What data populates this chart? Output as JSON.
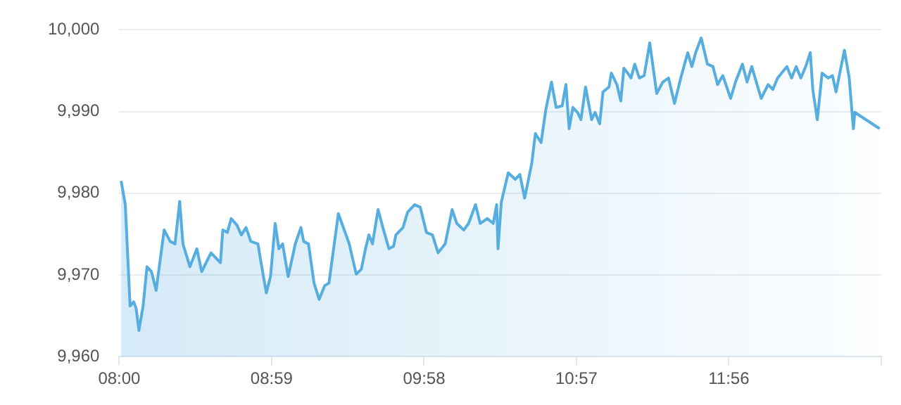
{
  "chart_data": {
    "type": "area",
    "color": "#56ade0",
    "x": [
      8.012,
      8.039,
      8.07,
      8.093,
      8.109,
      8.127,
      8.154,
      8.179,
      8.208,
      8.238,
      8.29,
      8.329,
      8.36,
      8.39,
      8.411,
      8.456,
      8.501,
      8.532,
      8.592,
      8.653,
      8.668,
      8.698,
      8.722,
      8.759,
      8.788,
      8.818,
      8.849,
      8.895,
      8.915,
      8.949,
      8.976,
      9.006,
      9.03,
      9.054,
      9.09,
      9.136,
      9.172,
      9.19,
      9.221,
      9.257,
      9.29,
      9.326,
      9.353,
      9.414,
      9.484,
      9.529,
      9.562,
      9.589,
      9.611,
      9.634,
      9.67,
      9.701,
      9.74,
      9.77,
      9.785,
      9.831,
      9.861,
      9.906,
      9.942,
      9.982,
      10.021,
      10.057,
      10.103,
      10.148,
      10.178,
      10.223,
      10.254,
      10.299,
      10.329,
      10.375,
      10.413,
      10.435,
      10.444,
      10.465,
      10.51,
      10.555,
      10.585,
      10.616,
      10.662,
      10.685,
      10.722,
      10.752,
      10.789,
      10.819,
      10.858,
      10.882,
      10.903,
      10.927,
      10.957,
      10.979,
      11.009,
      11.048,
      11.07,
      11.1,
      11.121,
      11.16,
      11.175,
      11.211,
      11.236,
      11.256,
      11.281,
      11.302,
      11.326,
      11.356,
      11.387,
      11.423,
      11.468,
      11.507,
      11.544,
      11.583,
      11.623,
      11.668,
      11.695,
      11.719,
      11.755,
      11.795,
      11.831,
      11.861,
      11.894,
      11.945,
      11.976,
      12.021,
      12.051,
      12.081,
      12.142,
      12.187,
      12.217,
      12.248,
      12.308,
      12.338,
      12.368,
      12.398,
      12.429,
      12.459,
      12.475,
      12.504,
      12.535,
      12.574,
      12.602,
      12.625,
      12.679,
      12.71,
      12.737,
      12.746,
      12.906
    ],
    "values": [
      9981.5,
      9978.6,
      9966.2,
      9966.7,
      9965.9,
      9963.2,
      9966.2,
      9971.0,
      9970.4,
      9968.1,
      9975.5,
      9974.1,
      9973.8,
      9979.0,
      9973.8,
      9971.0,
      9973.2,
      9970.4,
      9972.7,
      9971.5,
      9975.5,
      9975.2,
      9976.9,
      9976.1,
      9974.9,
      9975.8,
      9974.1,
      9973.8,
      9971.5,
      9967.8,
      9969.8,
      9976.3,
      9973.2,
      9973.8,
      9969.8,
      9973.8,
      9975.8,
      9974.1,
      9973.8,
      9969.0,
      9967.0,
      9968.7,
      9969.0,
      9977.5,
      9973.8,
      9970.1,
      9970.7,
      9973.2,
      9974.9,
      9973.8,
      9978.0,
      9975.8,
      9973.2,
      9973.5,
      9974.9,
      9975.8,
      9977.7,
      9978.6,
      9978.3,
      9975.2,
      9974.9,
      9972.7,
      9973.8,
      9978.0,
      9976.3,
      9975.5,
      9976.3,
      9978.6,
      9976.3,
      9976.9,
      9976.3,
      9978.6,
      9973.2,
      9978.9,
      9982.5,
      9981.7,
      9982.3,
      9979.4,
      9983.7,
      9987.3,
      9986.2,
      9990.2,
      9993.6,
      9990.5,
      9990.7,
      9993.3,
      9987.9,
      9990.5,
      9989.9,
      9989.0,
      9993.0,
      9989.0,
      9989.9,
      9988.5,
      9992.4,
      9993.0,
      9994.7,
      9993.3,
      9991.3,
      9995.3,
      9994.7,
      9994.1,
      9995.8,
      9994.1,
      9994.4,
      9998.4,
      9992.2,
      9993.6,
      9994.1,
      9991.0,
      9994.1,
      9997.2,
      9995.5,
      9997.2,
      9999.0,
      9995.8,
      9995.5,
      9993.3,
      9994.4,
      9991.6,
      9993.6,
      9995.8,
      9993.6,
      9995.5,
      9991.6,
      9993.3,
      9992.7,
      9994.1,
      9995.5,
      9994.1,
      9995.5,
      9994.1,
      9995.5,
      9997.2,
      9992.7,
      9989.0,
      9994.7,
      9994.1,
      9994.4,
      9992.4,
      9997.5,
      9994.1,
      9987.9,
      9989.9,
      9987.9
    ],
    "xlim": [
      8,
      12.917
    ],
    "xticks": [
      {
        "value": 8,
        "label": "08:00"
      },
      {
        "value": 8.983,
        "label": "08:59"
      },
      {
        "value": 9.967,
        "label": "09:58"
      },
      {
        "value": 10.95,
        "label": "10:57"
      },
      {
        "value": 11.933,
        "label": "11:56"
      },
      {
        "value": 12.917,
        "label": null
      }
    ],
    "ylim": [
      9960,
      10000
    ],
    "yticks": [
      {
        "value": 9960,
        "label": "9,960"
      },
      {
        "value": 9970,
        "label": "9,970"
      },
      {
        "value": 9980,
        "label": "9,980"
      },
      {
        "value": 9990,
        "label": "9,990"
      },
      {
        "value": 10000,
        "label": "10,000"
      }
    ],
    "grid": "y",
    "marker": "none",
    "legend": false
  }
}
